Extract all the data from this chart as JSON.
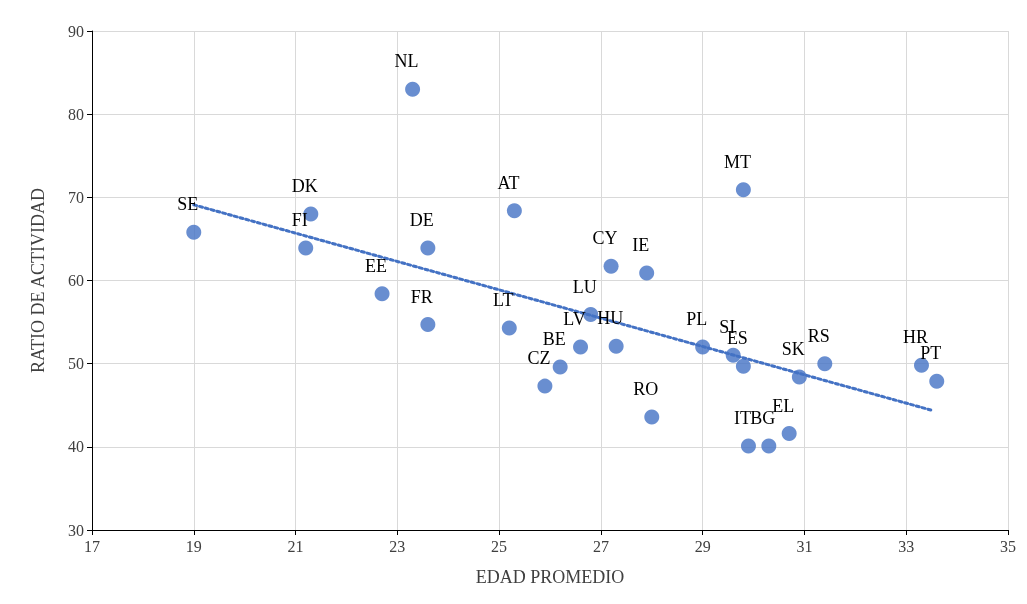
{
  "chart_data": {
    "type": "scatter",
    "xlabel": "EDAD PROMEDIO",
    "ylabel": "RATIO DE ACTIVIDAD",
    "xlim": [
      17,
      35
    ],
    "xticks": [
      17,
      19,
      21,
      23,
      25,
      27,
      29,
      31,
      33,
      35
    ],
    "ylim": [
      30,
      90
    ],
    "yticks": [
      30,
      40,
      50,
      60,
      70,
      80,
      90
    ],
    "grid": true,
    "marker": "circle",
    "series": [
      {
        "color": "#4472c4",
        "x": [
          19.0,
          21.3,
          21.2,
          23.3,
          22.7,
          23.6,
          23.6,
          25.3,
          25.2,
          25.9,
          26.2,
          26.6,
          26.8,
          27.3,
          27.2,
          27.9,
          28.0,
          29.0,
          29.6,
          29.8,
          29.8,
          29.9,
          30.3,
          30.7,
          30.9,
          31.4,
          33.3,
          33.6
        ],
        "values": [
          65.8,
          68.0,
          63.9,
          83.0,
          58.4,
          63.9,
          54.7,
          68.4,
          54.3,
          47.3,
          49.6,
          52.0,
          55.9,
          52.1,
          61.7,
          60.9,
          43.6,
          52.0,
          51.0,
          49.7,
          70.9,
          40.1,
          40.1,
          41.6,
          48.4,
          50.0,
          49.8,
          47.9
        ]
      },
      {
        "type": "line",
        "color": "#4472c4",
        "line_style": "dotted",
        "marker": "none",
        "x": [
          19.0,
          33.5
        ],
        "values": [
          69.1,
          44.4
        ]
      }
    ],
    "annotations": [
      {
        "text": "SE",
        "x": 19.0,
        "y": 65.8
      },
      {
        "text": "DK",
        "x": 21.3,
        "y": 68.0
      },
      {
        "text": "FI",
        "x": 21.2,
        "y": 63.9
      },
      {
        "text": "NL",
        "x": 23.3,
        "y": 83.0
      },
      {
        "text": "EE",
        "x": 22.7,
        "y": 58.4
      },
      {
        "text": "DE",
        "x": 23.6,
        "y": 63.9
      },
      {
        "text": "FR",
        "x": 23.6,
        "y": 54.7
      },
      {
        "text": "AT",
        "x": 25.3,
        "y": 68.4
      },
      {
        "text": "LT",
        "x": 25.2,
        "y": 54.3
      },
      {
        "text": "CZ",
        "x": 25.9,
        "y": 47.3
      },
      {
        "text": "BE",
        "x": 26.2,
        "y": 49.6
      },
      {
        "text": "LV",
        "x": 26.6,
        "y": 52.0
      },
      {
        "text": "LU",
        "x": 26.8,
        "y": 55.9
      },
      {
        "text": "HU",
        "x": 27.3,
        "y": 52.1
      },
      {
        "text": "CY",
        "x": 27.2,
        "y": 61.7
      },
      {
        "text": "IE",
        "x": 27.9,
        "y": 60.9
      },
      {
        "text": "RO",
        "x": 28.0,
        "y": 43.6
      },
      {
        "text": "PL",
        "x": 29.0,
        "y": 52.0
      },
      {
        "text": "SI",
        "x": 29.6,
        "y": 51.0
      },
      {
        "text": "ES",
        "x": 29.8,
        "y": 49.7
      },
      {
        "text": "MT",
        "x": 29.8,
        "y": 70.9
      },
      {
        "text": "IT",
        "x": 29.9,
        "y": 40.1
      },
      {
        "text": "BG",
        "x": 30.3,
        "y": 40.1
      },
      {
        "text": "EL",
        "x": 30.7,
        "y": 41.6
      },
      {
        "text": "SK",
        "x": 30.9,
        "y": 48.4
      },
      {
        "text": "RS",
        "x": 31.4,
        "y": 50.0
      },
      {
        "text": "HR",
        "x": 33.3,
        "y": 49.8
      },
      {
        "text": "PT",
        "x": 33.6,
        "y": 47.9
      }
    ]
  }
}
